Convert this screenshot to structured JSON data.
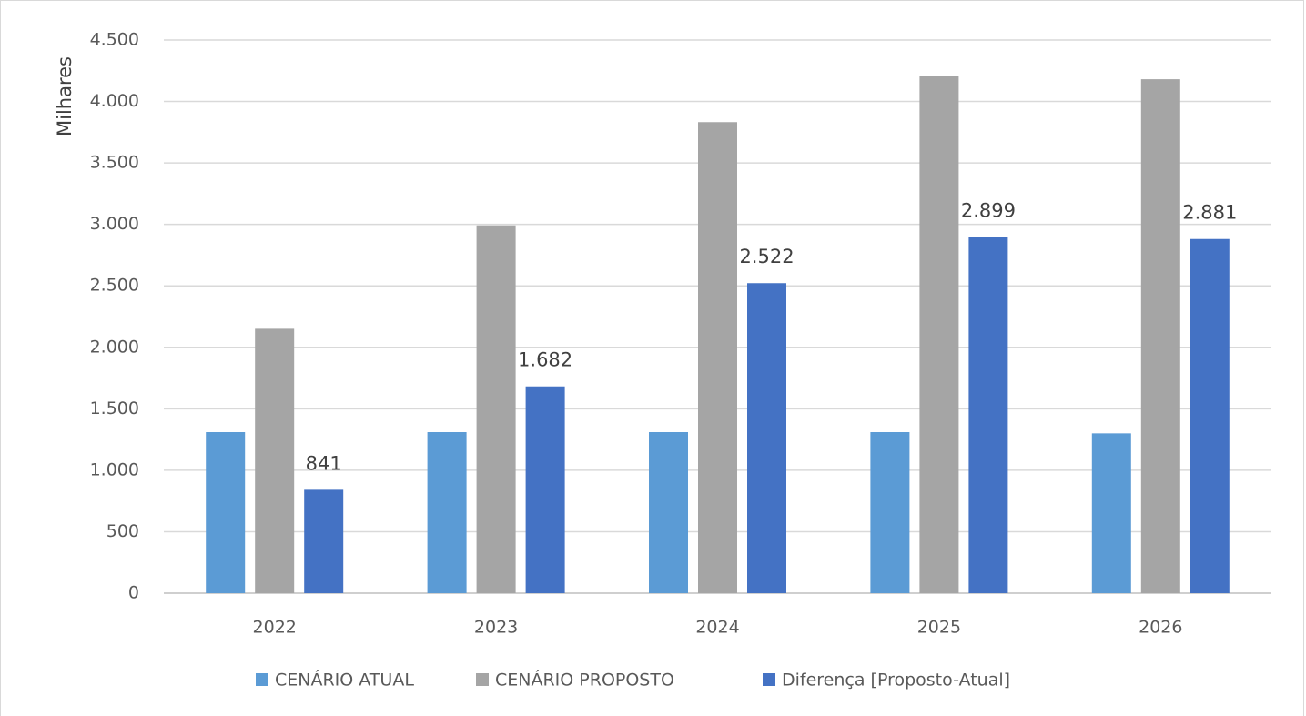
{
  "chart_data": {
    "type": "bar",
    "title": "",
    "xlabel": "",
    "ylabel": "Milhares",
    "ylim": [
      0,
      4500
    ],
    "yticks": [
      0,
      500,
      1000,
      1500,
      2000,
      2500,
      3000,
      3500,
      4000,
      4500
    ],
    "ytick_labels": [
      "0",
      "500",
      "1.000",
      "1.500",
      "2.000",
      "2.500",
      "3.000",
      "3.500",
      "4.000",
      "4.500"
    ],
    "grid": true,
    "legend_position": "bottom",
    "categories": [
      "2022",
      "2023",
      "2024",
      "2025",
      "2026"
    ],
    "series": [
      {
        "name": "CENÁRIO ATUAL",
        "color": "#5B9BD5",
        "values": [
          1310,
          1310,
          1310,
          1310,
          1300
        ],
        "data_labels": [
          null,
          null,
          null,
          null,
          null
        ]
      },
      {
        "name": "CENÁRIO PROPOSTO",
        "color": "#A5A5A5",
        "values": [
          2151,
          2992,
          3832,
          4209,
          4181
        ],
        "data_labels": [
          null,
          null,
          null,
          null,
          null
        ]
      },
      {
        "name": "Diferença [Proposto-Atual]",
        "color": "#4472C4",
        "values": [
          841,
          1682,
          2522,
          2899,
          2881
        ],
        "data_labels": [
          "841",
          "1.682",
          "2.522",
          "2.899",
          "2.881"
        ]
      }
    ]
  }
}
